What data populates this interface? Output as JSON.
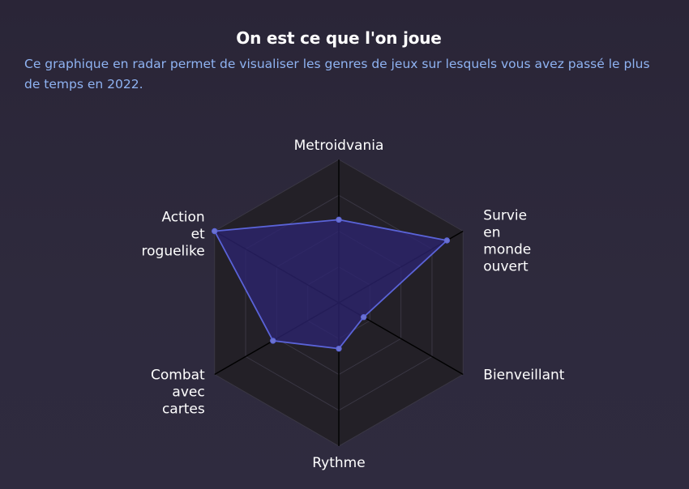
{
  "header": {
    "title": "On est ce que l'on joue",
    "subtitle": "Ce graphique en radar permet de visualiser les genres de jeux sur lesquels vous avez passé le plus de temps en 2022."
  },
  "colors": {
    "background": "#2c2839",
    "grid_fill": "#232027",
    "grid_line": "#3a3744",
    "axis_line": "#000000",
    "series_fill": "#2d2470",
    "series_stroke": "#5a63d8",
    "point": "#6b72d0",
    "title": "#ffffff",
    "subtitle": "#8fb3f2"
  },
  "chart_data": {
    "type": "radar",
    "axes": [
      [
        "Metroidvania"
      ],
      [
        "Survie",
        "en",
        "monde",
        "ouvert"
      ],
      [
        "Bienveillant"
      ],
      [
        "Rythme"
      ],
      [
        "Combat",
        "avec",
        "cartes"
      ],
      [
        "Action",
        "et",
        "roguelike"
      ]
    ],
    "range": [
      0,
      100
    ],
    "grid_levels": 4,
    "series": [
      {
        "values": [
          58,
          87,
          20,
          32,
          53,
          100
        ]
      }
    ]
  }
}
